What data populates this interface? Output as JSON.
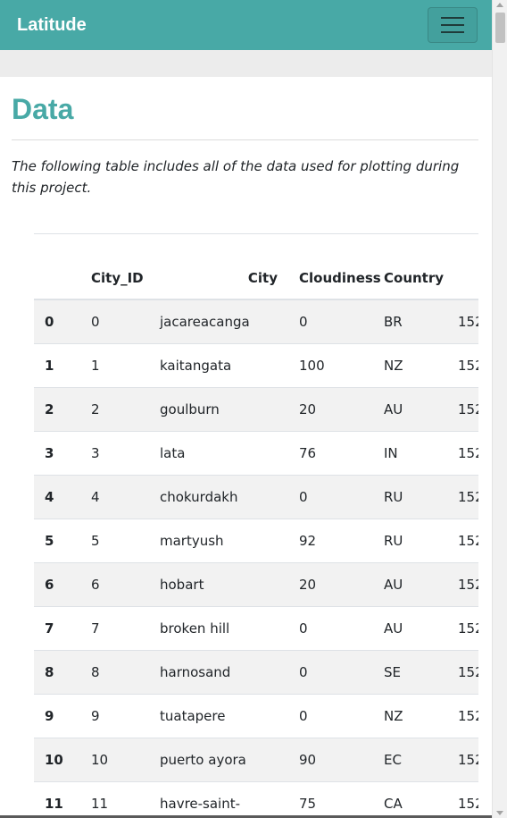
{
  "navbar": {
    "brand": "Latitude"
  },
  "page": {
    "title": "Data",
    "intro": "The following table includes all of the data used for plotting during this project."
  },
  "table": {
    "headers": [
      "",
      "City_ID",
      "City",
      "Cloudiness",
      "Country",
      ""
    ],
    "rows": [
      [
        "0",
        "0",
        "jacareacanga",
        "0",
        "BR",
        "152"
      ],
      [
        "1",
        "1",
        "kaitangata",
        "100",
        "NZ",
        "152"
      ],
      [
        "2",
        "2",
        "goulburn",
        "20",
        "AU",
        "152"
      ],
      [
        "3",
        "3",
        "lata",
        "76",
        "IN",
        "152"
      ],
      [
        "4",
        "4",
        "chokurdakh",
        "0",
        "RU",
        "152"
      ],
      [
        "5",
        "5",
        "martyush",
        "92",
        "RU",
        "152"
      ],
      [
        "6",
        "6",
        "hobart",
        "20",
        "AU",
        "152"
      ],
      [
        "7",
        "7",
        "broken hill",
        "0",
        "AU",
        "152"
      ],
      [
        "8",
        "8",
        "harnosand",
        "0",
        "SE",
        "152"
      ],
      [
        "9",
        "9",
        "tuatapere",
        "0",
        "NZ",
        "152"
      ],
      [
        "10",
        "10",
        "puerto ayora",
        "90",
        "EC",
        "152"
      ],
      [
        "11",
        "11",
        "havre-saint-",
        "75",
        "CA",
        "152"
      ]
    ]
  }
}
